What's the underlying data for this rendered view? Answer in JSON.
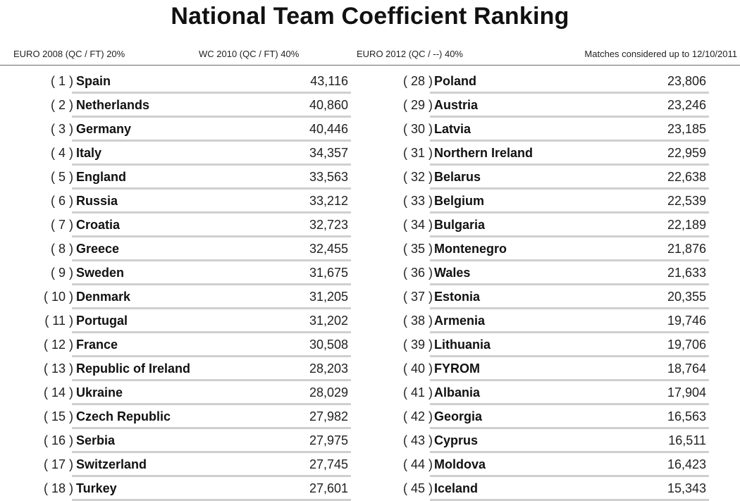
{
  "title": "National Team Coefficient Ranking",
  "info": [
    "EURO 2008  (QC / FT) 20%",
    "WC 2010  (QC / FT) 40%",
    "EURO 2012  (QC / --)  40%",
    "Matches considered up to 12/10/2011"
  ],
  "left": [
    {
      "rank": "( 1 )",
      "name": "Spain",
      "value": "43,116"
    },
    {
      "rank": "( 2 )",
      "name": "Netherlands",
      "value": "40,860"
    },
    {
      "rank": "( 3 )",
      "name": "Germany",
      "value": "40,446"
    },
    {
      "rank": "( 4 )",
      "name": "Italy",
      "value": "34,357"
    },
    {
      "rank": "( 5 )",
      "name": "England",
      "value": "33,563"
    },
    {
      "rank": "( 6 )",
      "name": "Russia",
      "value": "33,212"
    },
    {
      "rank": "( 7 )",
      "name": "Croatia",
      "value": "32,723"
    },
    {
      "rank": "( 8 )",
      "name": "Greece",
      "value": "32,455"
    },
    {
      "rank": "( 9 )",
      "name": "Sweden",
      "value": "31,675"
    },
    {
      "rank": "( 10 )",
      "name": "Denmark",
      "value": "31,205"
    },
    {
      "rank": "( 11 )",
      "name": "Portugal",
      "value": "31,202"
    },
    {
      "rank": "( 12 )",
      "name": "France",
      "value": "30,508"
    },
    {
      "rank": "( 13 )",
      "name": "Republic of Ireland",
      "value": "28,203"
    },
    {
      "rank": "( 14 )",
      "name": "Ukraine",
      "value": "28,029"
    },
    {
      "rank": "( 15 )",
      "name": "Czech Republic",
      "value": "27,982"
    },
    {
      "rank": "( 16 )",
      "name": "Serbia",
      "value": "27,975"
    },
    {
      "rank": "( 17 )",
      "name": "Switzerland",
      "value": "27,745"
    },
    {
      "rank": "( 18 )",
      "name": "Turkey",
      "value": "27,601"
    }
  ],
  "right": [
    {
      "rank": "( 28 )",
      "name": "Poland",
      "value": "23,806"
    },
    {
      "rank": "( 29 )",
      "name": "Austria",
      "value": "23,246"
    },
    {
      "rank": "( 30 )",
      "name": "Latvia",
      "value": "23,185"
    },
    {
      "rank": "( 31 )",
      "name": "Northern Ireland",
      "value": "22,959"
    },
    {
      "rank": "( 32 )",
      "name": "Belarus",
      "value": "22,638"
    },
    {
      "rank": "( 33 )",
      "name": "Belgium",
      "value": "22,539"
    },
    {
      "rank": "( 34 )",
      "name": "Bulgaria",
      "value": "22,189"
    },
    {
      "rank": "( 35 )",
      "name": "Montenegro",
      "value": "21,876"
    },
    {
      "rank": "( 36 )",
      "name": "Wales",
      "value": "21,633"
    },
    {
      "rank": "( 37 )",
      "name": "Estonia",
      "value": "20,355"
    },
    {
      "rank": "( 38 )",
      "name": "Armenia",
      "value": "19,746"
    },
    {
      "rank": "( 39 )",
      "name": "Lithuania",
      "value": "19,706"
    },
    {
      "rank": "( 40 )",
      "name": "FYROM",
      "value": "18,764"
    },
    {
      "rank": "( 41 )",
      "name": "Albania",
      "value": "17,904"
    },
    {
      "rank": "( 42 )",
      "name": "Georgia",
      "value": "16,563"
    },
    {
      "rank": "( 43 )",
      "name": "Cyprus",
      "value": "16,511"
    },
    {
      "rank": "( 44 )",
      "name": "Moldova",
      "value": "16,423"
    },
    {
      "rank": "( 45 )",
      "name": "Iceland",
      "value": "15,343"
    }
  ]
}
